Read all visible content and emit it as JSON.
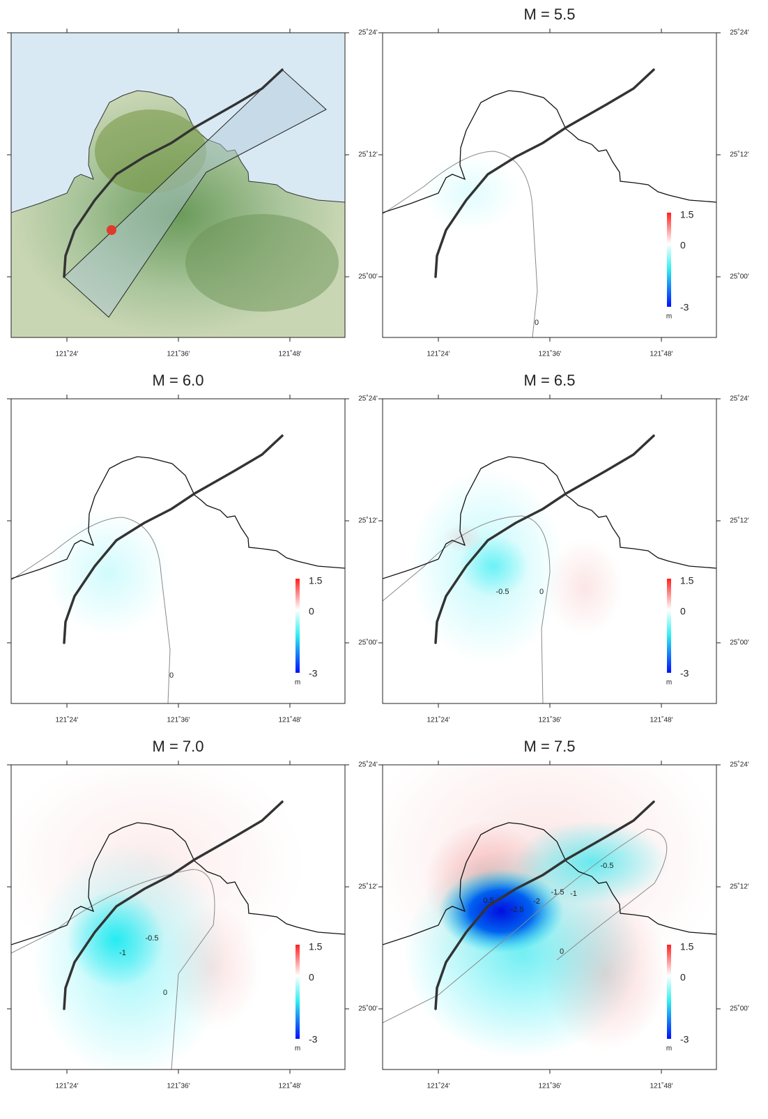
{
  "panels": [
    {
      "x_ticks": [
        "121˚24'",
        "121˚36'",
        "121˚48'"
      ],
      "y_ticks": [
        "25˚24'",
        "25˚12'",
        "25˚00'"
      ]
    },
    {
      "title": "M = 5.5",
      "x_ticks": [
        "121˚24'",
        "121˚36'",
        "121˚48'"
      ],
      "y_ticks": [
        "25˚24'",
        "25˚12'",
        "25˚00'"
      ],
      "colorbar": [
        "1.5",
        "0",
        "-3",
        "m"
      ],
      "contour_labels": [
        "0"
      ]
    },
    {
      "title": "M = 6.0",
      "x_ticks": [
        "121˚24'",
        "121˚36'",
        "121˚48'"
      ],
      "y_ticks": [
        "25˚24'",
        "25˚12'",
        "25˚00'"
      ],
      "colorbar": [
        "1.5",
        "0",
        "-3",
        "m"
      ],
      "contour_labels": [
        "0"
      ]
    },
    {
      "title": "M = 6.5",
      "x_ticks": [
        "121˚24'",
        "121˚36'",
        "121˚48'"
      ],
      "y_ticks": [
        "25˚24'",
        "25˚12'",
        "25˚00'"
      ],
      "colorbar": [
        "1.5",
        "0",
        "-3",
        "m"
      ],
      "contour_labels": [
        "-0.5",
        "0"
      ]
    },
    {
      "title": "M = 7.0",
      "x_ticks": [
        "121˚24'",
        "121˚36'",
        "121˚48'"
      ],
      "y_ticks": [
        "25˚24'",
        "25˚12'",
        "25˚00'"
      ],
      "colorbar": [
        "1.5",
        "0",
        "-3",
        "m"
      ],
      "contour_labels": [
        "-1",
        "-0.5",
        "0"
      ]
    },
    {
      "title": "M = 7.5",
      "x_ticks": [
        "121˚24'",
        "121˚36'",
        "121˚48'"
      ],
      "y_ticks": [
        "25˚24'",
        "25˚12'",
        "25˚00'"
      ],
      "colorbar": [
        "1.5",
        "0",
        "-3",
        "m"
      ],
      "contour_labels": [
        "0.5",
        "-2.5",
        "-2",
        "-1.5",
        "-1",
        "-0.5",
        "0"
      ]
    }
  ]
}
